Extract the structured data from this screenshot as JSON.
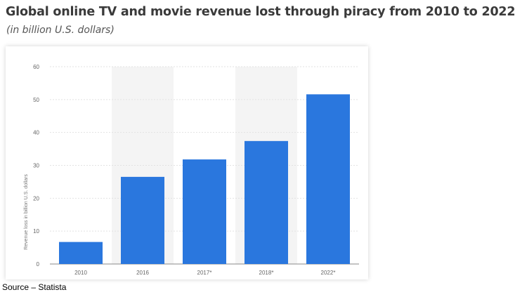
{
  "title": "Global online TV and movie revenue lost through piracy from 2010 to 2022",
  "subtitle": "(in billion U.S. dollars)",
  "source": "Source – Statista",
  "chart_data": {
    "type": "bar",
    "categories": [
      "2010",
      "2016",
      "2017*",
      "2018*",
      "2022*"
    ],
    "values": [
      6.7,
      26.5,
      31.8,
      37.4,
      51.6
    ],
    "ylabel": "Revenue loss in billion U.S. dollars",
    "xlabel": "",
    "ylim": [
      0,
      60
    ],
    "yticks": [
      "0",
      "10",
      "20",
      "30",
      "40",
      "50",
      "60"
    ],
    "grid": true,
    "bar_color": "#2a77de",
    "band_color": "#f4f4f4"
  }
}
